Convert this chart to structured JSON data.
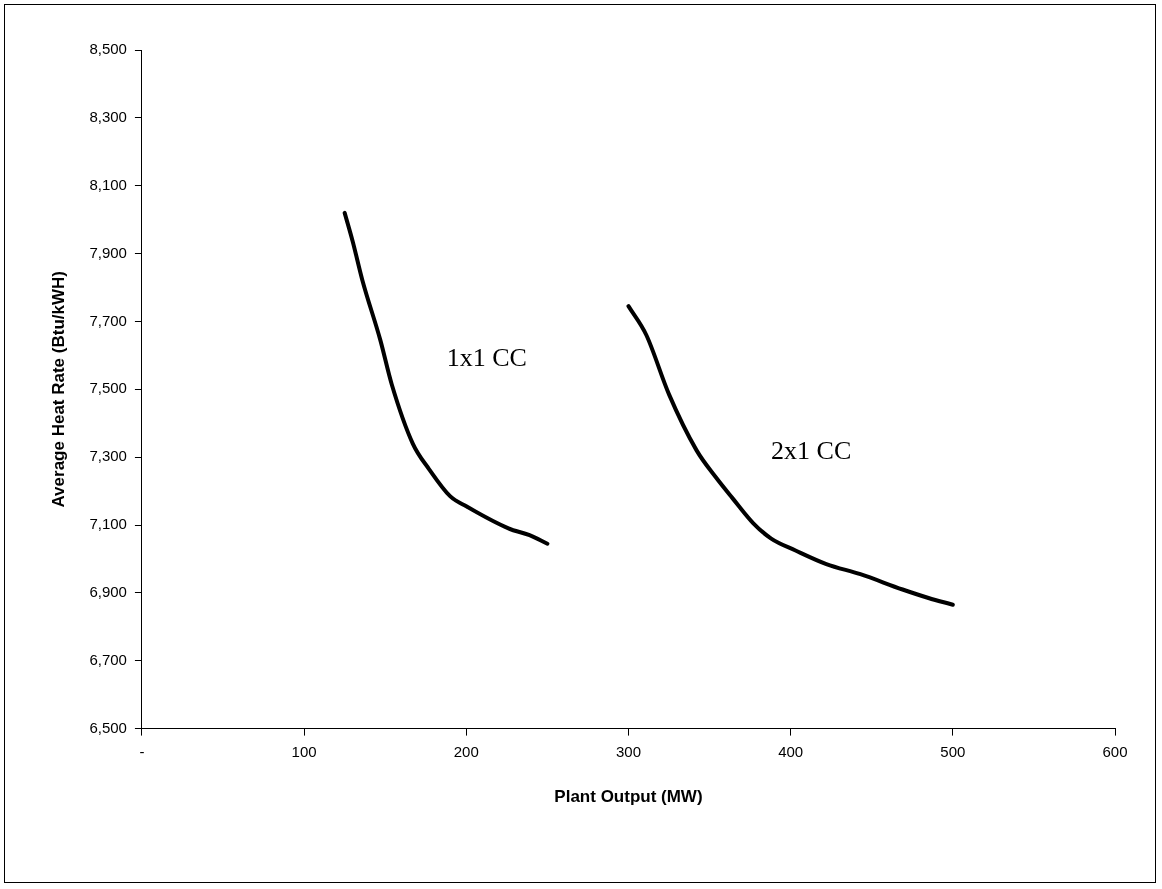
{
  "chart_data": {
    "type": "line",
    "xlabel": "Plant Output (MW)",
    "ylabel": "Average Heat Rate (Btu/kWH)",
    "xlim": [
      0,
      600
    ],
    "xticks": [
      {
        "value": 0,
        "label": "-"
      },
      100,
      200,
      300,
      400,
      500,
      600
    ],
    "ylim": [
      6500,
      8500
    ],
    "yticks": [
      {
        "value": 6500,
        "label": "6,500"
      },
      {
        "value": 6700,
        "label": "6,700"
      },
      {
        "value": 6900,
        "label": "6,900"
      },
      {
        "value": 7100,
        "label": "7,100"
      },
      {
        "value": 7300,
        "label": "7,300"
      },
      {
        "value": 7500,
        "label": "7,500"
      },
      {
        "value": 7700,
        "label": "7,700"
      },
      {
        "value": 7900,
        "label": "7,900"
      },
      {
        "value": 8100,
        "label": "8,100"
      },
      {
        "value": 8300,
        "label": "8,300"
      },
      {
        "value": 8500,
        "label": "8,500"
      }
    ],
    "grid": false,
    "legend": false,
    "marker": "none",
    "line_style": "solid",
    "series": [
      {
        "name": "1x1 CC",
        "color": "#000000",
        "x": [
          125,
          130,
          136,
          147,
          154,
          167,
          177,
          190,
          200,
          226,
          239,
          250
        ],
        "values": [
          8020,
          7935,
          7820,
          7645,
          7515,
          7340,
          7265,
          7185,
          7155,
          7090,
          7070,
          7045
        ]
      },
      {
        "name": "2x1 CC",
        "color": "#000000",
        "x": [
          300,
          311,
          325,
          342,
          354,
          364,
          377,
          388,
          403,
          422,
          443,
          469,
          485,
          500
        ],
        "values": [
          7745,
          7660,
          7485,
          7320,
          7240,
          7180,
          7105,
          7060,
          7025,
          6985,
          6955,
          6910,
          6885,
          6865
        ]
      }
    ]
  }
}
